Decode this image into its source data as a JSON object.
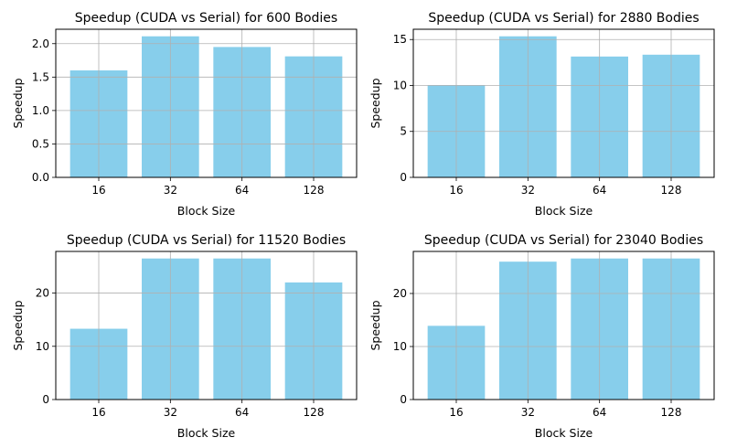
{
  "chart_data": [
    {
      "type": "bar",
      "title": "Speedup (CUDA vs Serial) for 600 Bodies",
      "xlabel": "Block Size",
      "ylabel": "Speedup",
      "categories": [
        "16",
        "32",
        "64",
        "128"
      ],
      "values": [
        1.6,
        2.11,
        1.95,
        1.81
      ],
      "ylim": [
        0,
        2.2155
      ],
      "yticks": [
        0.0,
        0.5,
        1.0,
        1.5,
        2.0
      ],
      "ytick_decimals": 1,
      "grid": true,
      "bar_color": "#87ceeb"
    },
    {
      "type": "bar",
      "title": "Speedup (CUDA vs Serial) for 2880 Bodies",
      "xlabel": "Block Size",
      "ylabel": "Speedup",
      "categories": [
        "16",
        "32",
        "64",
        "128"
      ],
      "values": [
        10.05,
        15.35,
        13.15,
        13.35
      ],
      "ylim": [
        0,
        16.1175
      ],
      "yticks": [
        0,
        5,
        10,
        15
      ],
      "ytick_decimals": 0,
      "grid": true,
      "bar_color": "#87ceeb"
    },
    {
      "type": "bar",
      "title": "Speedup (CUDA vs Serial) for 11520 Bodies",
      "xlabel": "Block Size",
      "ylabel": "Speedup",
      "categories": [
        "16",
        "32",
        "64",
        "128"
      ],
      "values": [
        13.3,
        26.5,
        26.5,
        22.0
      ],
      "ylim": [
        0,
        27.825
      ],
      "yticks": [
        0,
        10,
        20
      ],
      "ytick_decimals": 0,
      "grid": true,
      "bar_color": "#87ceeb"
    },
    {
      "type": "bar",
      "title": "Speedup (CUDA vs Serial) for 23040 Bodies",
      "xlabel": "Block Size",
      "ylabel": "Speedup",
      "categories": [
        "16",
        "32",
        "64",
        "128"
      ],
      "values": [
        13.9,
        26.0,
        26.6,
        26.6
      ],
      "ylim": [
        0,
        27.93
      ],
      "yticks": [
        0,
        10,
        20
      ],
      "ytick_decimals": 0,
      "grid": true,
      "bar_color": "#87ceeb"
    }
  ]
}
